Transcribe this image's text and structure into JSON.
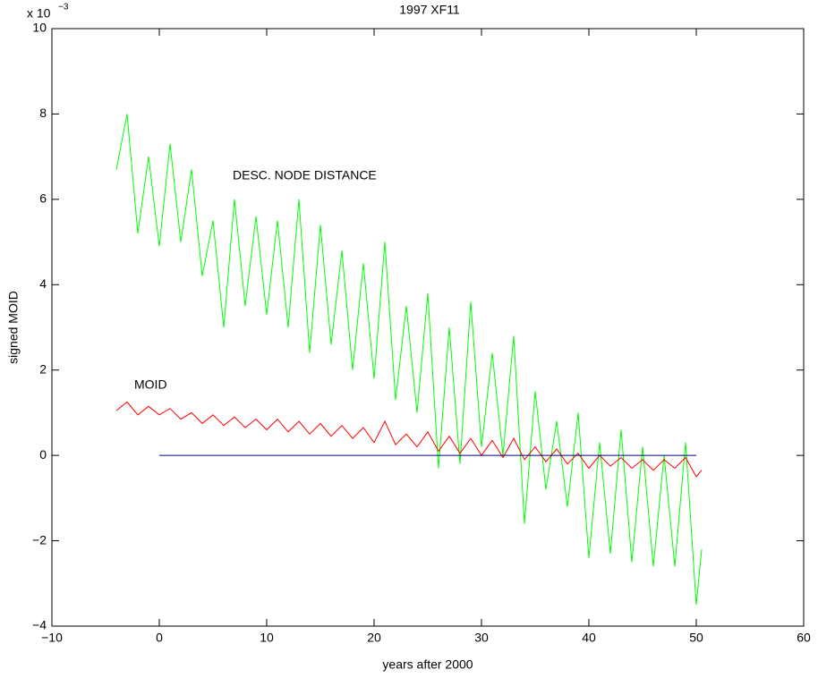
{
  "chart_data": {
    "type": "line",
    "title": "1997 XF11",
    "x_label": "years after 2000",
    "y_label": "signed MOID",
    "y_multiplier": {
      "base": "x 10",
      "exponent": "−3"
    },
    "xlim": [
      -10,
      60
    ],
    "xticks": [
      {
        "value": -10,
        "label": "−10"
      },
      0,
      10,
      20,
      30,
      40,
      50,
      60
    ],
    "ylim": [
      -4,
      10
    ],
    "yticks": [
      {
        "value": -4,
        "label": "−4"
      },
      {
        "value": -2,
        "label": "−2"
      },
      0,
      2,
      4,
      6,
      8,
      10
    ],
    "grid": false,
    "series": [
      {
        "name": "DESC. NODE DISTANCE",
        "color": "#00ff00",
        "x": [
          -4,
          -3,
          -2,
          -1,
          0,
          1,
          2,
          3,
          4,
          5,
          6,
          7,
          8,
          9,
          10,
          11,
          12,
          13,
          14,
          15,
          16,
          17,
          18,
          19,
          20,
          21,
          22,
          23,
          24,
          25,
          26,
          27,
          28,
          29,
          30,
          31,
          32,
          33,
          34,
          35,
          36,
          37,
          38,
          39,
          40,
          41,
          42,
          43,
          44,
          45,
          46,
          47,
          48,
          49,
          50,
          50.5
        ],
        "values": [
          6.7,
          8.0,
          5.2,
          7.0,
          4.9,
          7.3,
          5.0,
          6.7,
          4.2,
          5.5,
          3.0,
          6.0,
          3.5,
          5.6,
          3.3,
          5.5,
          3.0,
          6.0,
          2.4,
          5.4,
          2.6,
          4.8,
          2.0,
          4.5,
          1.8,
          5.0,
          1.3,
          3.5,
          1.0,
          3.8,
          -0.3,
          3.0,
          -0.2,
          3.6,
          0.2,
          2.4,
          0.0,
          2.8,
          -1.6,
          1.5,
          -0.8,
          0.8,
          -1.2,
          1.0,
          -2.4,
          0.3,
          -2.3,
          0.6,
          -2.5,
          0.2,
          -2.6,
          0.0,
          -2.6,
          0.3,
          -3.5,
          -2.2
        ]
      },
      {
        "name": "MOID",
        "color": "#ff0000",
        "x": [
          -4,
          -3,
          -2,
          -1,
          0,
          1,
          2,
          3,
          4,
          5,
          6,
          7,
          8,
          9,
          10,
          11,
          12,
          13,
          14,
          15,
          16,
          17,
          18,
          19,
          20,
          21,
          22,
          23,
          24,
          25,
          26,
          27,
          28,
          29,
          30,
          31,
          32,
          33,
          34,
          35,
          36,
          37,
          38,
          39,
          40,
          41,
          42,
          43,
          44,
          45,
          46,
          47,
          48,
          49,
          50,
          50.5
        ],
        "values": [
          1.05,
          1.25,
          0.95,
          1.15,
          0.95,
          1.1,
          0.85,
          1.0,
          0.75,
          0.95,
          0.7,
          0.9,
          0.65,
          0.85,
          0.6,
          0.85,
          0.55,
          0.8,
          0.5,
          0.75,
          0.45,
          0.7,
          0.4,
          0.65,
          0.3,
          0.8,
          0.25,
          0.5,
          0.2,
          0.55,
          0.1,
          0.45,
          0.05,
          0.4,
          0.0,
          0.35,
          -0.05,
          0.4,
          -0.1,
          0.2,
          -0.15,
          0.15,
          -0.2,
          0.05,
          -0.3,
          0.0,
          -0.25,
          -0.05,
          -0.3,
          -0.1,
          -0.35,
          -0.1,
          -0.3,
          -0.05,
          -0.5,
          -0.35
        ]
      },
      {
        "color": "#000080",
        "x": [
          0,
          50
        ],
        "values": [
          0,
          0
        ]
      }
    ]
  }
}
